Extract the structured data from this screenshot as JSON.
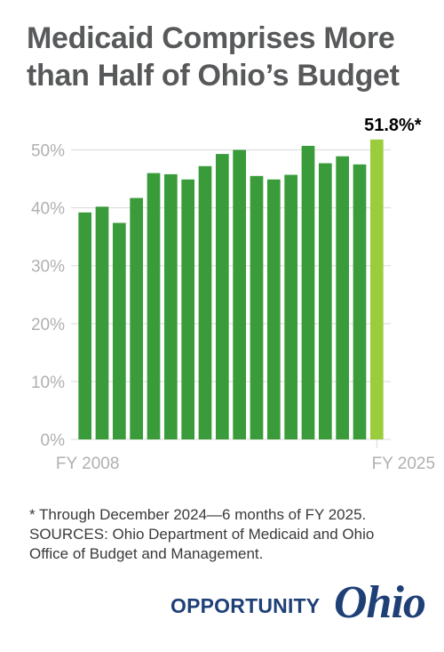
{
  "title_lines": [
    "Medicaid Comprises More",
    "than Half of Ohio’s Budget"
  ],
  "chart_data": {
    "type": "bar",
    "categories": [
      "FY 2008",
      "FY 2009",
      "FY 2010",
      "FY 2011",
      "FY 2012",
      "FY 2013",
      "FY 2014",
      "FY 2015",
      "FY 2016",
      "FY 2017",
      "FY 2018",
      "FY 2019",
      "FY 2020",
      "FY 2021",
      "FY 2022",
      "FY 2023",
      "FY 2024",
      "FY 2025"
    ],
    "values": [
      39.2,
      40.2,
      37.4,
      41.7,
      46.0,
      45.8,
      44.9,
      47.2,
      49.3,
      50.0,
      45.5,
      44.9,
      45.7,
      50.7,
      47.7,
      48.9,
      47.5,
      51.8
    ],
    "x_tick_labels": [
      {
        "index": 0,
        "label": "FY 2008"
      },
      {
        "index": 17,
        "label": "FY 2025"
      }
    ],
    "y_ticks": [
      0,
      10,
      20,
      30,
      40,
      50
    ],
    "y_tick_labels": [
      "0%",
      "10%",
      "20%",
      "30%",
      "40%",
      "50%"
    ],
    "ylim": [
      0,
      55
    ],
    "grid": true,
    "highlight": {
      "index": 17,
      "label": "51.8%*"
    },
    "colors": {
      "bar": "#3a9b3a",
      "highlight": "#9acd3c",
      "grid": "#d9d9d9",
      "tick_text": "#b0b0b0",
      "label": "#000000"
    }
  },
  "footnote_lines": [
    "* Through December 2024—6 months of FY 2025.",
    "SOURCES: Ohio Department of Medicaid and Ohio",
    "Office of Budget and Management."
  ],
  "brand": {
    "word": "OPPORTUNITY",
    "script": "Ohio",
    "color": "#1f3f77"
  }
}
